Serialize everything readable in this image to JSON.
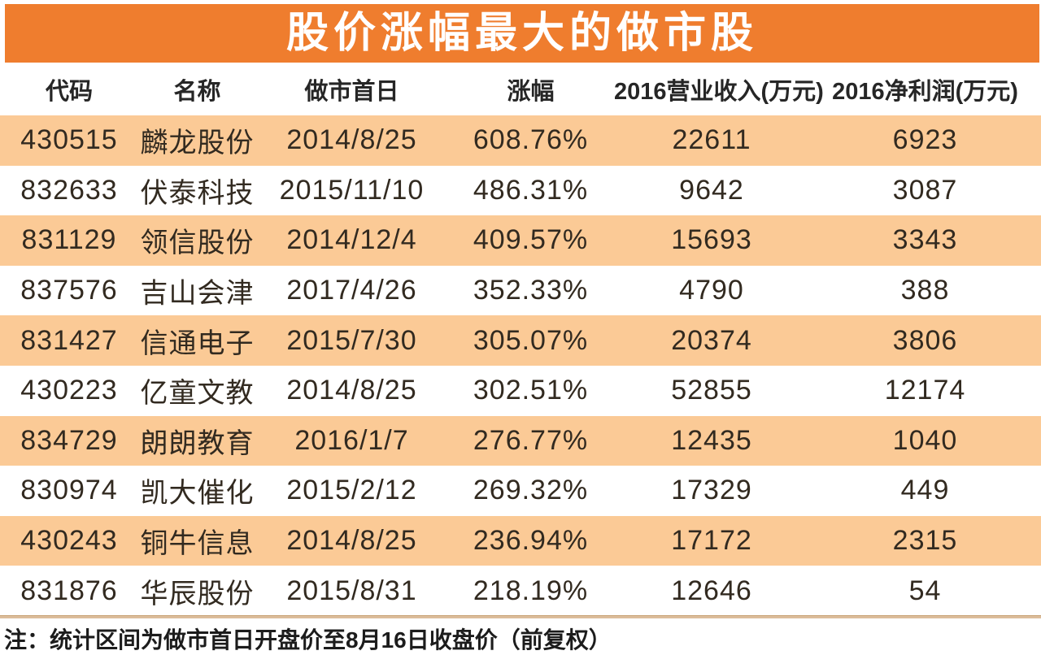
{
  "page": {
    "title": "股价涨幅最大的做市股",
    "note": "注：统计区间为做市首日开盘价至8月16日收盘价（前复权）"
  },
  "colors": {
    "title_bg": "#ef7d2e",
    "row_alt_bg": "#fbca96",
    "title_text": "#ffffff",
    "body_text": "#322a20",
    "divider": "#dcbd9b"
  },
  "chart_data": {
    "type": "table",
    "title": "股价涨幅最大的做市股",
    "columns": [
      "代码",
      "名称",
      "做市首日",
      "涨幅",
      "2016营业收入(万元)",
      "2016净利润(万元)"
    ],
    "rows": [
      [
        "430515",
        "麟龙股份",
        "2014/8/25",
        "608.76%",
        "22611",
        "6923"
      ],
      [
        "832633",
        "伏泰科技",
        "2015/11/10",
        "486.31%",
        "9642",
        "3087"
      ],
      [
        "831129",
        "领信股份",
        "2014/12/4",
        "409.57%",
        "15693",
        "3343"
      ],
      [
        "837576",
        "吉山会津",
        "2017/4/26",
        "352.33%",
        "4790",
        "388"
      ],
      [
        "831427",
        "信通电子",
        "2015/7/30",
        "305.07%",
        "20374",
        "3806"
      ],
      [
        "430223",
        "亿童文教",
        "2014/8/25",
        "302.51%",
        "52855",
        "12174"
      ],
      [
        "834729",
        "朗朗教育",
        "2016/1/7",
        "276.77%",
        "12435",
        "1040"
      ],
      [
        "830974",
        "凯大催化",
        "2015/2/12",
        "269.32%",
        "17329",
        "449"
      ],
      [
        "430243",
        "铜牛信息",
        "2014/8/25",
        "236.94%",
        "17172",
        "2315"
      ],
      [
        "831876",
        "华辰股份",
        "2015/8/31",
        "218.19%",
        "12646",
        "54"
      ]
    ],
    "note": "注：统计区间为做市首日开盘价至8月16日收盘价（前复权）",
    "layout": {
      "alternating_row_fill": "even rows peach, odd rows white",
      "grid": "off"
    }
  }
}
